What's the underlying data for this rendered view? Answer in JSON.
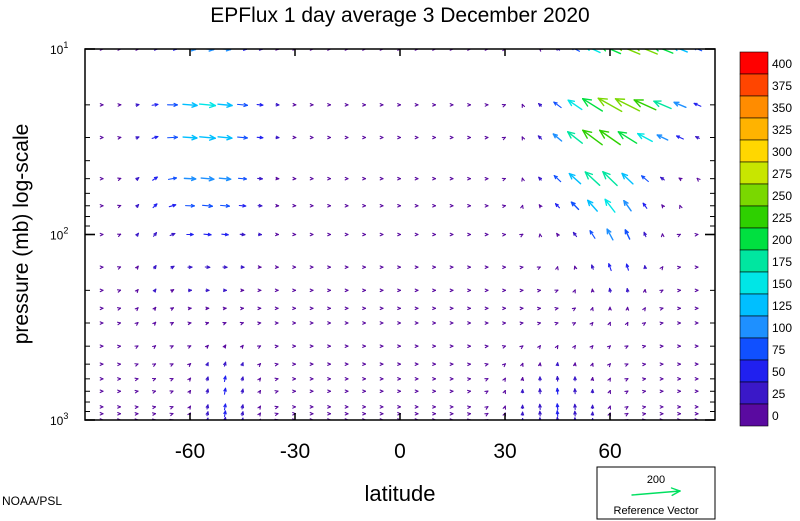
{
  "chart_data": {
    "type": "vector-field",
    "title": "EPFlux  1 day average  3 December 2020",
    "xlabel": "latitude",
    "ylabel": "pressure (mb)  log-scale",
    "x_ticks": [
      -60,
      -30,
      0,
      30,
      60
    ],
    "x_tick_labels": [
      "-60",
      "-30",
      "0",
      "30",
      "60"
    ],
    "xlim": [
      -90,
      90
    ],
    "y_scale": "log",
    "ylim": [
      1000,
      10
    ],
    "y_ticks": [
      {
        "value": 10,
        "base": "10",
        "exp": "1"
      },
      {
        "value": 100,
        "base": "10",
        "exp": "2"
      },
      {
        "value": 1000,
        "base": "10",
        "exp": "3"
      }
    ],
    "pressure_levels": [
      1000,
      925,
      850,
      700,
      600,
      500,
      400,
      300,
      250,
      200,
      150,
      100,
      70,
      50,
      30,
      20,
      10
    ],
    "colorbar": {
      "labels": [
        "400",
        "375",
        "350",
        "325",
        "300",
        "275",
        "250",
        "225",
        "200",
        "175",
        "150",
        "125",
        "100",
        "75",
        "50",
        "25",
        "0"
      ],
      "colors": [
        "#ff0000",
        "#ff4500",
        "#ff8c00",
        "#ffb300",
        "#ffd700",
        "#c8e600",
        "#7ad800",
        "#2ed000",
        "#00e040",
        "#00e6a0",
        "#00e6e6",
        "#00bfff",
        "#1e90ff",
        "#1050ff",
        "#2020f0",
        "#3a18c8",
        "#5a0aa0"
      ]
    },
    "reference_vector": {
      "value": "200",
      "label": "Reference Vector",
      "color": "#00e060"
    }
  },
  "credit": "NOAA/PSL"
}
